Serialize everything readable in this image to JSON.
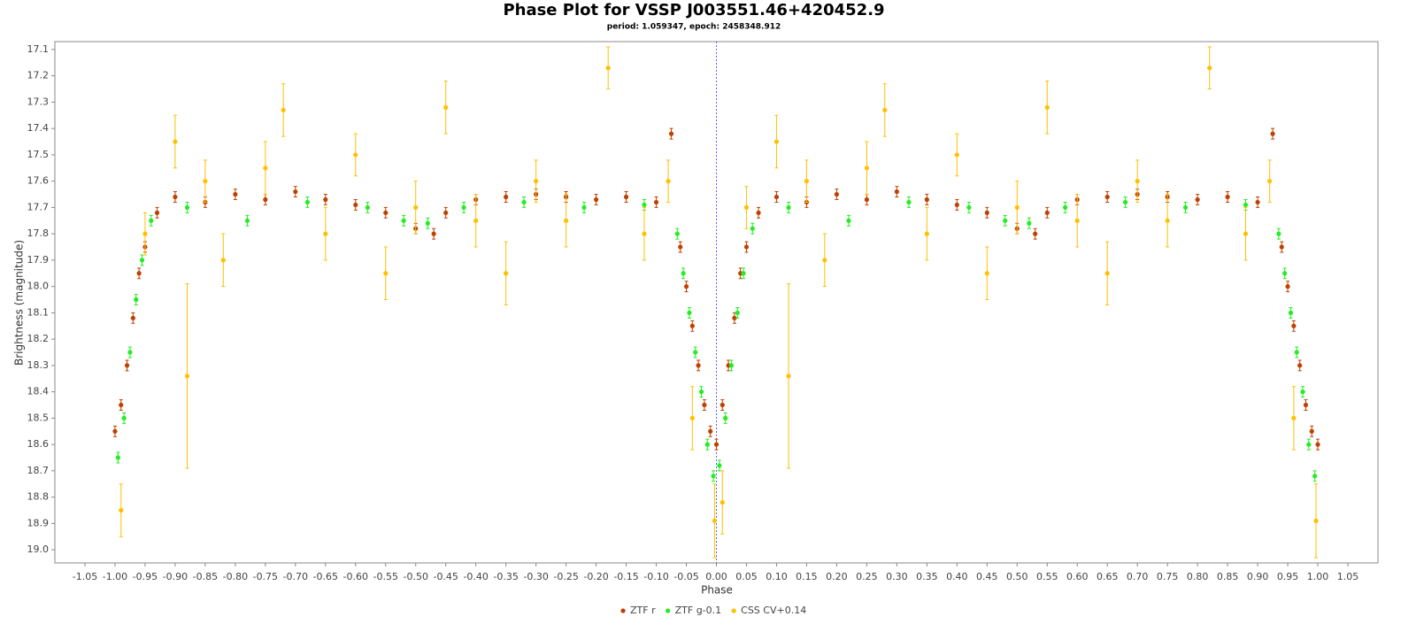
{
  "chart_data": {
    "type": "scatter",
    "title": "Phase Plot for VSSP J003551.46+420452.9",
    "subtitle": "period: 1.059347, epoch: 2458348.912",
    "x_label": "Phase",
    "y_label": "Brightness (magnitude)",
    "xlim": [
      -1.1,
      1.1
    ],
    "ylim": [
      17.07,
      19.05
    ],
    "y_inverted": true,
    "reference_line_x": 0,
    "xticks": [
      -1.05,
      {
        "value": -1,
        "label": "-1.00"
      },
      -0.95,
      {
        "value": -0.9,
        "label": "-0.90"
      },
      -0.85,
      {
        "value": -0.8,
        "label": "-0.80"
      },
      -0.75,
      {
        "value": -0.7,
        "label": "-0.70"
      },
      -0.65,
      {
        "value": -0.6,
        "label": "-0.60"
      },
      -0.55,
      {
        "value": -0.5,
        "label": "-0.50"
      },
      -0.45,
      {
        "value": -0.4,
        "label": "-0.40"
      },
      -0.35,
      {
        "value": -0.3,
        "label": "-0.30"
      },
      -0.25,
      {
        "value": -0.2,
        "label": "-0.20"
      },
      -0.15,
      {
        "value": -0.1,
        "label": "-0.10"
      },
      -0.05,
      {
        "value": 0,
        "label": "0.00"
      },
      0.05,
      {
        "value": 0.1,
        "label": "0.10"
      },
      0.15,
      {
        "value": 0.2,
        "label": "0.20"
      },
      0.25,
      {
        "value": 0.3,
        "label": "0.30"
      },
      0.35,
      {
        "value": 0.4,
        "label": "0.40"
      },
      0.45,
      {
        "value": 0.5,
        "label": "0.50"
      },
      0.55,
      {
        "value": 0.6,
        "label": "0.60"
      },
      0.65,
      {
        "value": 0.7,
        "label": "0.70"
      },
      0.75,
      {
        "value": 0.8,
        "label": "0.80"
      },
      0.85,
      {
        "value": 0.9,
        "label": "0.90"
      },
      0.95,
      {
        "value": 1,
        "label": "1.00"
      },
      1.05
    ],
    "yticks": [
      17.1,
      17.2,
      17.3,
      17.4,
      17.5,
      17.6,
      17.7,
      17.8,
      17.9,
      {
        "value": 18,
        "label": "18.0"
      },
      18.1,
      18.2,
      18.3,
      18.4,
      18.5,
      18.6,
      18.7,
      18.8,
      18.9,
      {
        "value": 19,
        "label": "19.0"
      }
    ],
    "series": [
      {
        "name": "ZTF r",
        "color": "#c04000",
        "error": 0.02,
        "x": [
          -1.0,
          -0.99,
          -0.98,
          -0.97,
          -0.96,
          -0.95,
          -0.93,
          -0.9,
          -0.85,
          -0.8,
          -0.75,
          -0.7,
          -0.65,
          -0.6,
          -0.55,
          -0.5,
          -0.47,
          -0.45,
          -0.4,
          -0.35,
          -0.3,
          -0.25,
          -0.2,
          -0.15,
          -0.1,
          -0.075,
          -0.06,
          -0.05,
          -0.04,
          -0.03,
          -0.02,
          -0.01,
          0.0,
          0.01,
          0.02,
          0.03,
          0.04,
          0.05,
          0.07,
          0.1,
          0.15,
          0.2,
          0.25,
          0.3,
          0.35,
          0.4,
          0.45,
          0.5,
          0.53,
          0.55,
          0.6,
          0.65,
          0.7,
          0.75,
          0.8,
          0.85,
          0.9,
          0.925,
          0.94,
          0.95,
          0.96,
          0.97,
          0.98,
          0.99,
          1.0
        ],
        "values": [
          18.55,
          18.45,
          18.3,
          18.12,
          17.95,
          17.85,
          17.72,
          17.66,
          17.68,
          17.65,
          17.67,
          17.64,
          17.67,
          17.69,
          17.72,
          17.78,
          17.8,
          17.72,
          17.67,
          17.66,
          17.65,
          17.66,
          17.67,
          17.66,
          17.68,
          17.42,
          17.85,
          18.0,
          18.15,
          18.3,
          18.45,
          18.55,
          18.6,
          18.45,
          18.3,
          18.12,
          17.95,
          17.85,
          17.72,
          17.66,
          17.68,
          17.65,
          17.67,
          17.64,
          17.67,
          17.69,
          17.72,
          17.78,
          17.8,
          17.72,
          17.67,
          17.66,
          17.65,
          17.66,
          17.67,
          17.66,
          17.68,
          17.42,
          17.85,
          18.0,
          18.15,
          18.3,
          18.45,
          18.55,
          18.6
        ]
      },
      {
        "name": "ZTF g-0.1",
        "color": "#22ee22",
        "error": 0.02,
        "x": [
          -0.995,
          -0.985,
          -0.975,
          -0.965,
          -0.955,
          -0.94,
          -0.88,
          -0.78,
          -0.68,
          -0.58,
          -0.52,
          -0.48,
          -0.42,
          -0.32,
          -0.22,
          -0.12,
          -0.065,
          -0.055,
          -0.045,
          -0.035,
          -0.025,
          -0.015,
          -0.005,
          0.005,
          0.015,
          0.025,
          0.035,
          0.045,
          0.06,
          0.12,
          0.22,
          0.32,
          0.42,
          0.48,
          0.52,
          0.58,
          0.68,
          0.78,
          0.88,
          0.935,
          0.945,
          0.955,
          0.965,
          0.975,
          0.985,
          0.995
        ],
        "values": [
          18.65,
          18.5,
          18.25,
          18.05,
          17.9,
          17.75,
          17.7,
          17.75,
          17.68,
          17.7,
          17.75,
          17.76,
          17.7,
          17.68,
          17.7,
          17.69,
          17.8,
          17.95,
          18.1,
          18.25,
          18.4,
          18.6,
          18.72,
          18.68,
          18.5,
          18.3,
          18.1,
          17.95,
          17.78,
          17.7,
          17.75,
          17.68,
          17.7,
          17.75,
          17.76,
          17.7,
          17.68,
          17.7,
          17.69,
          17.8,
          17.95,
          18.1,
          18.25,
          18.4,
          18.6,
          18.72
        ]
      },
      {
        "name": "CSS CV+0.14",
        "color": "#ffc000",
        "x": [
          -0.99,
          -0.95,
          -0.9,
          -0.88,
          -0.85,
          -0.82,
          -0.75,
          -0.72,
          -0.65,
          -0.6,
          -0.55,
          -0.5,
          -0.45,
          -0.4,
          -0.35,
          -0.3,
          -0.25,
          -0.18,
          -0.12,
          -0.08,
          -0.04,
          -0.003,
          0.01,
          0.05,
          0.1,
          0.12,
          0.15,
          0.18,
          0.25,
          0.28,
          0.35,
          0.4,
          0.45,
          0.5,
          0.55,
          0.6,
          0.65,
          0.7,
          0.75,
          0.82,
          0.88,
          0.92,
          0.96,
          0.997
        ],
        "values": [
          18.85,
          17.8,
          17.45,
          18.34,
          17.6,
          17.9,
          17.55,
          17.33,
          17.8,
          17.5,
          17.95,
          17.7,
          17.32,
          17.75,
          17.95,
          17.6,
          17.75,
          17.17,
          17.8,
          17.6,
          18.5,
          18.89,
          18.82,
          17.7,
          17.45,
          18.34,
          17.6,
          17.9,
          17.55,
          17.33,
          17.8,
          17.5,
          17.95,
          17.7,
          17.32,
          17.75,
          17.95,
          17.6,
          17.75,
          17.17,
          17.8,
          17.6,
          18.5,
          18.89
        ],
        "errors": [
          0.1,
          0.08,
          0.1,
          0.35,
          0.08,
          0.1,
          0.1,
          0.1,
          0.1,
          0.08,
          0.1,
          0.1,
          0.1,
          0.1,
          0.12,
          0.08,
          0.1,
          0.08,
          0.1,
          0.08,
          0.12,
          0.14,
          0.12,
          0.08,
          0.1,
          0.35,
          0.08,
          0.1,
          0.1,
          0.1,
          0.1,
          0.08,
          0.1,
          0.1,
          0.1,
          0.1,
          0.12,
          0.08,
          0.1,
          0.08,
          0.1,
          0.08,
          0.12,
          0.14
        ]
      }
    ]
  }
}
